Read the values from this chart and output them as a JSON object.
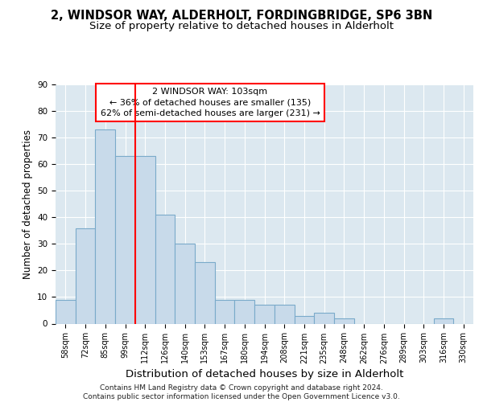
{
  "title_line1": "2, WINDSOR WAY, ALDERHOLT, FORDINGBRIDGE, SP6 3BN",
  "title_line2": "Size of property relative to detached houses in Alderholt",
  "xlabel": "Distribution of detached houses by size in Alderholt",
  "ylabel": "Number of detached properties",
  "categories": [
    "58sqm",
    "72sqm",
    "85sqm",
    "99sqm",
    "112sqm",
    "126sqm",
    "140sqm",
    "153sqm",
    "167sqm",
    "180sqm",
    "194sqm",
    "208sqm",
    "221sqm",
    "235sqm",
    "248sqm",
    "262sqm",
    "276sqm",
    "289sqm",
    "303sqm",
    "316sqm",
    "330sqm"
  ],
  "values": [
    9,
    36,
    73,
    63,
    63,
    41,
    30,
    23,
    9,
    9,
    7,
    7,
    3,
    4,
    2,
    0,
    0,
    0,
    0,
    2,
    0
  ],
  "bar_color": "#c8daea",
  "bar_edge_color": "#7aaaca",
  "red_line_x": 3.5,
  "annotation_line1": "2 WINDSOR WAY: 103sqm",
  "annotation_line2": "← 36% of detached houses are smaller (135)",
  "annotation_line3": "62% of semi-detached houses are larger (231) →",
  "ylim": [
    0,
    90
  ],
  "yticks": [
    0,
    10,
    20,
    30,
    40,
    50,
    60,
    70,
    80,
    90
  ],
  "footer_line1": "Contains HM Land Registry data © Crown copyright and database right 2024.",
  "footer_line2": "Contains public sector information licensed under the Open Government Licence v3.0.",
  "background_color": "#dce8f0",
  "grid_color": "#ffffff",
  "title_fontsize": 10.5,
  "subtitle_fontsize": 9.5,
  "ylabel_fontsize": 8.5,
  "xlabel_fontsize": 9.5,
  "tick_fontsize": 7,
  "annot_fontsize": 8,
  "footer_fontsize": 6.5
}
